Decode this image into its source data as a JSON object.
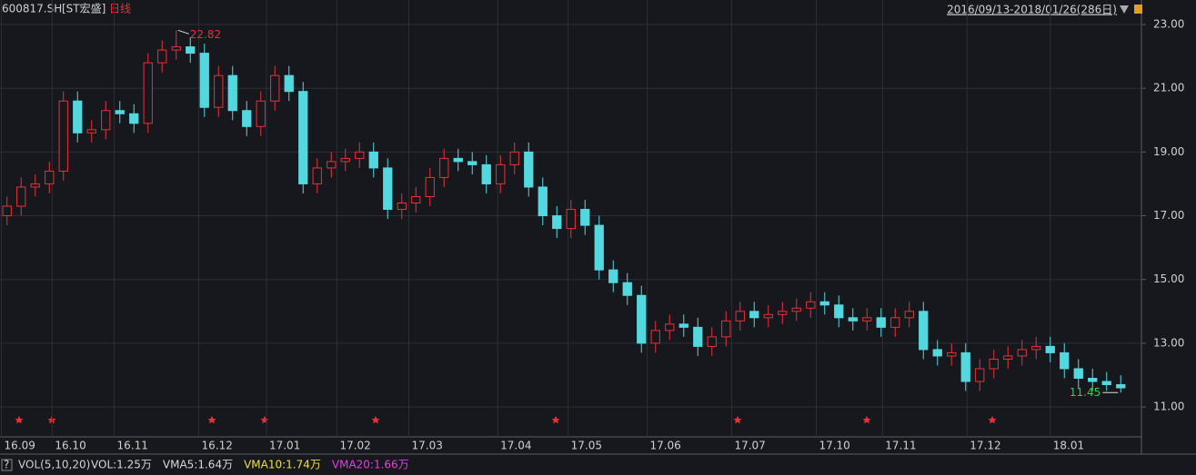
{
  "chart_data": {
    "type": "candlestick",
    "symbol": "600817.SH",
    "name": "[ST宏盛]",
    "period": "日线",
    "range": "2016/09/13-2018/01/26(286日)",
    "indicator": {
      "name": "VOL(5,10,20)",
      "items": [
        {
          "label": "VOL:1.25万",
          "color": "#d8d8d8"
        },
        {
          "label": "VMA5:1.64万",
          "color": "#d8d8d8"
        },
        {
          "label": "VMA10:1.74万",
          "color": "#e8e040"
        },
        {
          "label": "VMA20:1.66万",
          "color": "#e040e0"
        }
      ]
    },
    "help": "?",
    "up_color": "#e8303a",
    "down_color": "#54d8e0",
    "grid": true,
    "xlim": [
      0,
      80
    ],
    "ylim": [
      10.09,
      23.77
    ],
    "yticks": [
      {
        "value": 11,
        "label": "11.00"
      },
      {
        "value": 13,
        "label": "13.00"
      },
      {
        "value": 15,
        "label": "15.00"
      },
      {
        "value": 17,
        "label": "17.00"
      },
      {
        "value": 19,
        "label": "19.00"
      },
      {
        "value": 21,
        "label": "21.00"
      },
      {
        "value": 23,
        "label": "23.00"
      }
    ],
    "xticks": [
      {
        "value": 0.1,
        "label": "16.09"
      },
      {
        "value": 3.7,
        "label": "16.10"
      },
      {
        "value": 8.1,
        "label": "16.11"
      },
      {
        "value": 14.1,
        "label": "16.12"
      },
      {
        "value": 18.9,
        "label": "17.01"
      },
      {
        "value": 23.9,
        "label": "17.02"
      },
      {
        "value": 29.0,
        "label": "17.03"
      },
      {
        "value": 35.3,
        "label": "17.04"
      },
      {
        "value": 40.3,
        "label": "17.05"
      },
      {
        "value": 45.9,
        "label": "17.06"
      },
      {
        "value": 51.9,
        "label": "17.07"
      },
      {
        "value": 57.9,
        "label": "17.10"
      },
      {
        "value": 62.6,
        "label": "17.11"
      },
      {
        "value": 68.6,
        "label": "17.12"
      },
      {
        "value": 74.5,
        "label": "18.01"
      }
    ],
    "open": [
      17.0,
      17.3,
      17.9,
      18.0,
      18.4,
      20.6,
      19.6,
      19.7,
      20.3,
      20.2,
      19.9,
      21.8,
      22.2,
      22.3,
      22.1,
      20.4,
      21.4,
      20.3,
      19.8,
      20.6,
      21.4,
      20.9,
      18.0,
      18.5,
      18.7,
      18.8,
      19.0,
      18.5,
      17.2,
      17.4,
      17.6,
      18.2,
      18.8,
      18.7,
      18.6,
      18.0,
      18.6,
      19.0,
      17.9,
      17.0,
      16.6,
      17.2,
      16.7,
      15.3,
      14.9,
      14.5,
      13.0,
      13.4,
      13.6,
      13.5,
      12.9,
      13.2,
      13.7,
      14.0,
      13.8,
      13.9,
      14.0,
      14.1,
      14.3,
      14.2,
      13.8,
      13.7,
      13.8,
      13.5,
      13.8,
      14.0,
      12.8,
      12.6,
      12.7,
      11.8,
      12.2,
      12.5,
      12.6,
      12.8,
      12.9,
      12.7,
      12.2,
      11.9,
      11.8,
      11.7
    ],
    "close": [
      17.3,
      17.9,
      18.0,
      18.4,
      20.6,
      19.6,
      19.7,
      20.3,
      20.2,
      19.9,
      21.8,
      22.2,
      22.3,
      22.1,
      20.4,
      21.4,
      20.3,
      19.8,
      20.6,
      21.4,
      20.9,
      18.0,
      18.5,
      18.7,
      18.8,
      19.0,
      18.5,
      17.2,
      17.4,
      17.6,
      18.2,
      18.8,
      18.7,
      18.6,
      18.0,
      18.6,
      19.0,
      17.9,
      17.0,
      16.6,
      17.2,
      16.7,
      15.3,
      14.9,
      14.5,
      13.0,
      13.4,
      13.6,
      13.5,
      12.9,
      13.2,
      13.7,
      14.0,
      13.8,
      13.9,
      14.0,
      14.1,
      14.3,
      14.2,
      13.8,
      13.7,
      13.8,
      13.5,
      13.8,
      14.0,
      12.8,
      12.6,
      12.7,
      11.8,
      12.2,
      12.5,
      12.6,
      12.8,
      12.9,
      12.7,
      12.2,
      11.9,
      11.8,
      11.7,
      11.6
    ],
    "high": [
      17.6,
      18.2,
      18.3,
      18.7,
      20.9,
      20.9,
      20.0,
      20.6,
      20.6,
      20.5,
      22.1,
      22.5,
      22.82,
      22.6,
      22.4,
      21.7,
      21.7,
      20.6,
      20.9,
      21.7,
      21.7,
      21.2,
      18.8,
      19.0,
      19.1,
      19.3,
      19.3,
      18.8,
      17.7,
      17.9,
      18.5,
      19.1,
      19.1,
      19.0,
      18.9,
      18.9,
      19.3,
      19.3,
      18.2,
      17.3,
      17.5,
      17.5,
      17.0,
      15.6,
      15.2,
      14.8,
      13.7,
      13.9,
      13.9,
      13.8,
      13.5,
      14.0,
      14.3,
      14.3,
      14.2,
      14.3,
      14.4,
      14.6,
      14.6,
      14.5,
      14.1,
      14.1,
      14.1,
      14.1,
      14.3,
      14.3,
      13.1,
      13.0,
      13.0,
      12.5,
      12.8,
      12.9,
      13.1,
      13.2,
      13.2,
      13.0,
      12.5,
      12.2,
      12.1,
      12.0
    ],
    "low": [
      16.7,
      17.0,
      17.6,
      17.7,
      18.1,
      19.3,
      19.3,
      19.4,
      19.9,
      19.6,
      19.6,
      21.5,
      21.9,
      21.8,
      20.1,
      20.1,
      20.0,
      19.5,
      19.5,
      20.3,
      20.6,
      17.7,
      17.7,
      18.2,
      18.4,
      18.5,
      18.2,
      16.9,
      16.9,
      17.1,
      17.3,
      17.9,
      18.4,
      18.3,
      17.7,
      17.7,
      18.3,
      17.6,
      16.7,
      16.3,
      16.3,
      16.4,
      15.0,
      14.6,
      14.2,
      12.7,
      12.7,
      13.1,
      13.2,
      12.6,
      12.6,
      12.9,
      13.4,
      13.5,
      13.5,
      13.6,
      13.7,
      13.8,
      13.9,
      13.5,
      13.4,
      13.4,
      13.2,
      13.2,
      13.5,
      12.5,
      12.3,
      12.3,
      11.5,
      11.5,
      11.9,
      12.2,
      12.3,
      12.5,
      12.4,
      11.9,
      11.6,
      11.5,
      11.5,
      11.45
    ],
    "max_label_index": 12,
    "min_label_index": 79
  }
}
